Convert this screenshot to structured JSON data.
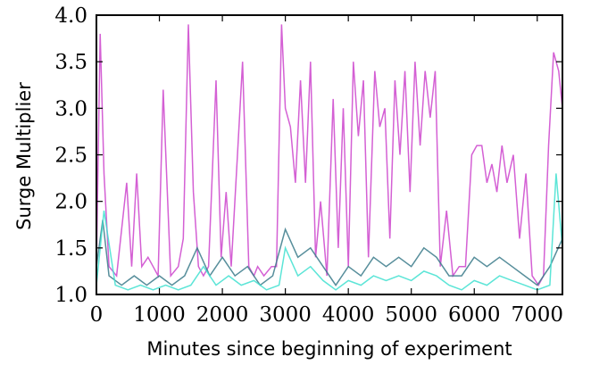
{
  "chart_data": {
    "type": "line",
    "title": "",
    "xlabel": "Minutes since beginning of experiment",
    "ylabel": "Surge Multiplier",
    "xlim": [
      0,
      7400
    ],
    "ylim": [
      1.0,
      4.0
    ],
    "x_ticks": [
      0,
      1000,
      2000,
      3000,
      4000,
      5000,
      6000,
      7000
    ],
    "y_ticks": [
      "1.0",
      "1.5",
      "2.0",
      "2.5",
      "3.0",
      "3.5",
      "4.0"
    ],
    "grid": false,
    "legend": "none",
    "series": [
      {
        "color": "#cc44cc",
        "x": [
          0,
          60,
          120,
          200,
          320,
          480,
          560,
          640,
          720,
          820,
          900,
          980,
          1060,
          1180,
          1300,
          1380,
          1460,
          1540,
          1620,
          1700,
          1780,
          1900,
          1980,
          2060,
          2140,
          2240,
          2320,
          2420,
          2500,
          2560,
          2660,
          2780,
          2860,
          2940,
          3000,
          3080,
          3160,
          3240,
          3320,
          3400,
          3480,
          3560,
          3660,
          3760,
          3840,
          3920,
          4000,
          4080,
          4160,
          4240,
          4320,
          4420,
          4500,
          4580,
          4660,
          4740,
          4820,
          4900,
          4980,
          5060,
          5140,
          5220,
          5300,
          5380,
          5460,
          5560,
          5660,
          5760,
          5860,
          5960,
          6040,
          6120,
          6200,
          6280,
          6360,
          6440,
          6520,
          6620,
          6720,
          6820,
          6920,
          7020,
          7100,
          7180,
          7260,
          7340,
          7400
        ],
        "values": [
          1.3,
          3.8,
          2.3,
          1.3,
          1.2,
          2.2,
          1.3,
          2.3,
          1.3,
          1.4,
          1.3,
          1.2,
          3.2,
          1.2,
          1.3,
          1.6,
          3.9,
          2.1,
          1.3,
          1.2,
          1.3,
          3.3,
          1.4,
          2.1,
          1.3,
          2.5,
          3.5,
          1.3,
          1.2,
          1.3,
          1.2,
          1.3,
          1.3,
          3.9,
          3.0,
          2.8,
          2.2,
          3.3,
          2.2,
          3.5,
          1.4,
          2.0,
          1.2,
          3.1,
          1.5,
          3.0,
          1.3,
          3.5,
          2.7,
          3.3,
          1.4,
          3.4,
          2.8,
          3.0,
          1.6,
          3.3,
          2.5,
          3.4,
          2.1,
          3.5,
          2.6,
          3.4,
          2.9,
          3.4,
          1.3,
          1.9,
          1.2,
          1.3,
          1.3,
          2.5,
          2.6,
          2.6,
          2.2,
          2.4,
          2.1,
          2.6,
          2.2,
          2.5,
          1.6,
          2.3,
          1.2,
          1.1,
          1.2,
          2.6,
          3.6,
          3.4,
          3.0
        ]
      },
      {
        "color": "#3a7a8a",
        "x": [
          0,
          100,
          200,
          400,
          600,
          800,
          1000,
          1200,
          1400,
          1600,
          1800,
          2000,
          2200,
          2400,
          2600,
          2800,
          3000,
          3200,
          3400,
          3600,
          3800,
          4000,
          4200,
          4400,
          4600,
          4800,
          5000,
          5200,
          5400,
          5600,
          5800,
          6000,
          6200,
          6400,
          6600,
          6800,
          7000,
          7200,
          7400
        ],
        "values": [
          1.3,
          1.8,
          1.2,
          1.1,
          1.2,
          1.1,
          1.2,
          1.1,
          1.2,
          1.5,
          1.2,
          1.4,
          1.2,
          1.3,
          1.1,
          1.2,
          1.7,
          1.4,
          1.5,
          1.3,
          1.1,
          1.3,
          1.2,
          1.4,
          1.3,
          1.4,
          1.3,
          1.5,
          1.4,
          1.2,
          1.2,
          1.4,
          1.3,
          1.4,
          1.3,
          1.2,
          1.1,
          1.3,
          1.6
        ]
      },
      {
        "color": "#40e0d0",
        "x": [
          0,
          120,
          300,
          500,
          700,
          900,
          1100,
          1300,
          1500,
          1700,
          1900,
          2100,
          2300,
          2500,
          2700,
          2900,
          3000,
          3200,
          3400,
          3600,
          3800,
          4000,
          4200,
          4400,
          4600,
          4800,
          5000,
          5200,
          5400,
          5600,
          5800,
          6000,
          6200,
          6400,
          6600,
          6800,
          7000,
          7200,
          7300,
          7400
        ],
        "values": [
          1.1,
          1.9,
          1.1,
          1.05,
          1.1,
          1.05,
          1.1,
          1.05,
          1.1,
          1.3,
          1.1,
          1.2,
          1.1,
          1.15,
          1.05,
          1.1,
          1.5,
          1.2,
          1.3,
          1.15,
          1.05,
          1.15,
          1.1,
          1.2,
          1.15,
          1.2,
          1.15,
          1.25,
          1.2,
          1.1,
          1.05,
          1.15,
          1.1,
          1.2,
          1.15,
          1.1,
          1.05,
          1.1,
          2.3,
          1.5
        ]
      }
    ]
  }
}
